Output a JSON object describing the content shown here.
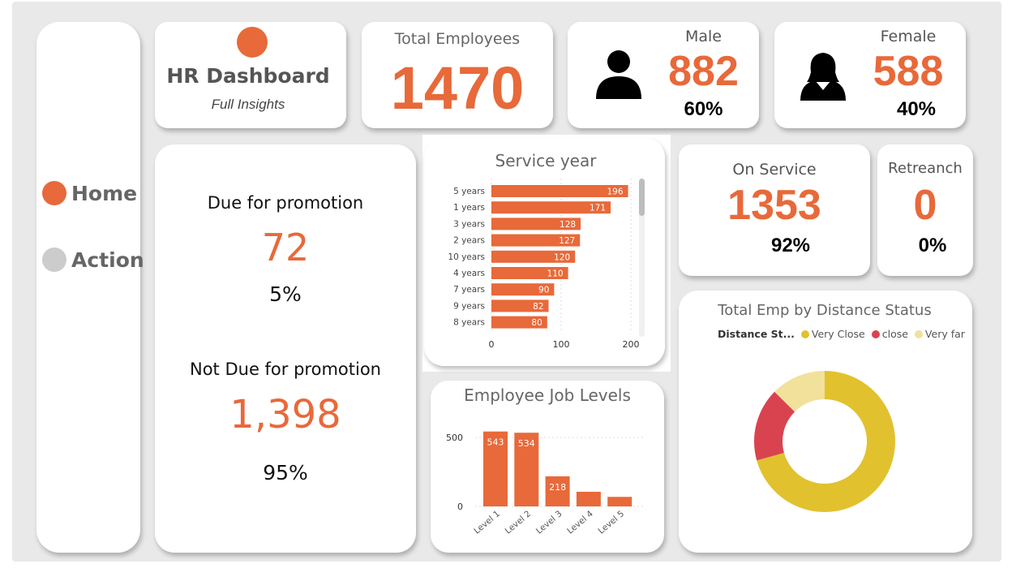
{
  "sidebar": {
    "items": [
      {
        "label": "Home",
        "color": "#e8693a"
      },
      {
        "label": "Action",
        "color": "#cccccc"
      }
    ]
  },
  "header": {
    "title": "HR Dashboard",
    "subtitle": "Full Insights"
  },
  "kpis": {
    "total_employees": {
      "label": "Total Employees",
      "value": "1470"
    },
    "male": {
      "label": "Male",
      "value": "882",
      "pct": "60%"
    },
    "female": {
      "label": "Female",
      "value": "588",
      "pct": "40%"
    },
    "on_service": {
      "label": "On Service",
      "value": "1353",
      "pct": "92%"
    },
    "retreanch": {
      "label": "Retreanch",
      "value": "0",
      "pct": "0%"
    }
  },
  "promotion": {
    "due_label": "Due for promotion",
    "due_value": "72",
    "due_pct": "5%",
    "not_due_label": "Not Due for promotion",
    "not_due_value": "1,398",
    "not_due_pct": "95%"
  },
  "colors": {
    "accent": "#e8693a",
    "very_close": "#e2c12f",
    "close": "#d9434f",
    "very_far": "#f1e19b"
  },
  "chart_data": [
    {
      "type": "bar",
      "orientation": "horizontal",
      "title": "Service year",
      "categories": [
        "5 years",
        "1 years",
        "3 years",
        "2 years",
        "10 years",
        "4 years",
        "7 years",
        "9 years",
        "8 years"
      ],
      "values": [
        196,
        171,
        128,
        127,
        120,
        110,
        90,
        82,
        80
      ],
      "xlim": [
        0,
        200
      ],
      "xticks": [
        0,
        100,
        200
      ]
    },
    {
      "type": "bar",
      "title": "Employee Job Levels",
      "categories": [
        "Level 1",
        "Level 2",
        "Level 3",
        "Level 4",
        "Level 5"
      ],
      "values": [
        543,
        534,
        218,
        106,
        69
      ],
      "labels": [
        "543",
        "534",
        "218",
        "",
        ""
      ],
      "ylim": [
        0,
        600
      ],
      "yticks": [
        0,
        500
      ]
    },
    {
      "type": "pie",
      "title": "Total Emp by Distance Status",
      "legend_title": "Distance St...",
      "categories": [
        "Very Close",
        "close",
        "Very far"
      ],
      "values": [
        1039,
        246,
        185
      ]
    }
  ]
}
